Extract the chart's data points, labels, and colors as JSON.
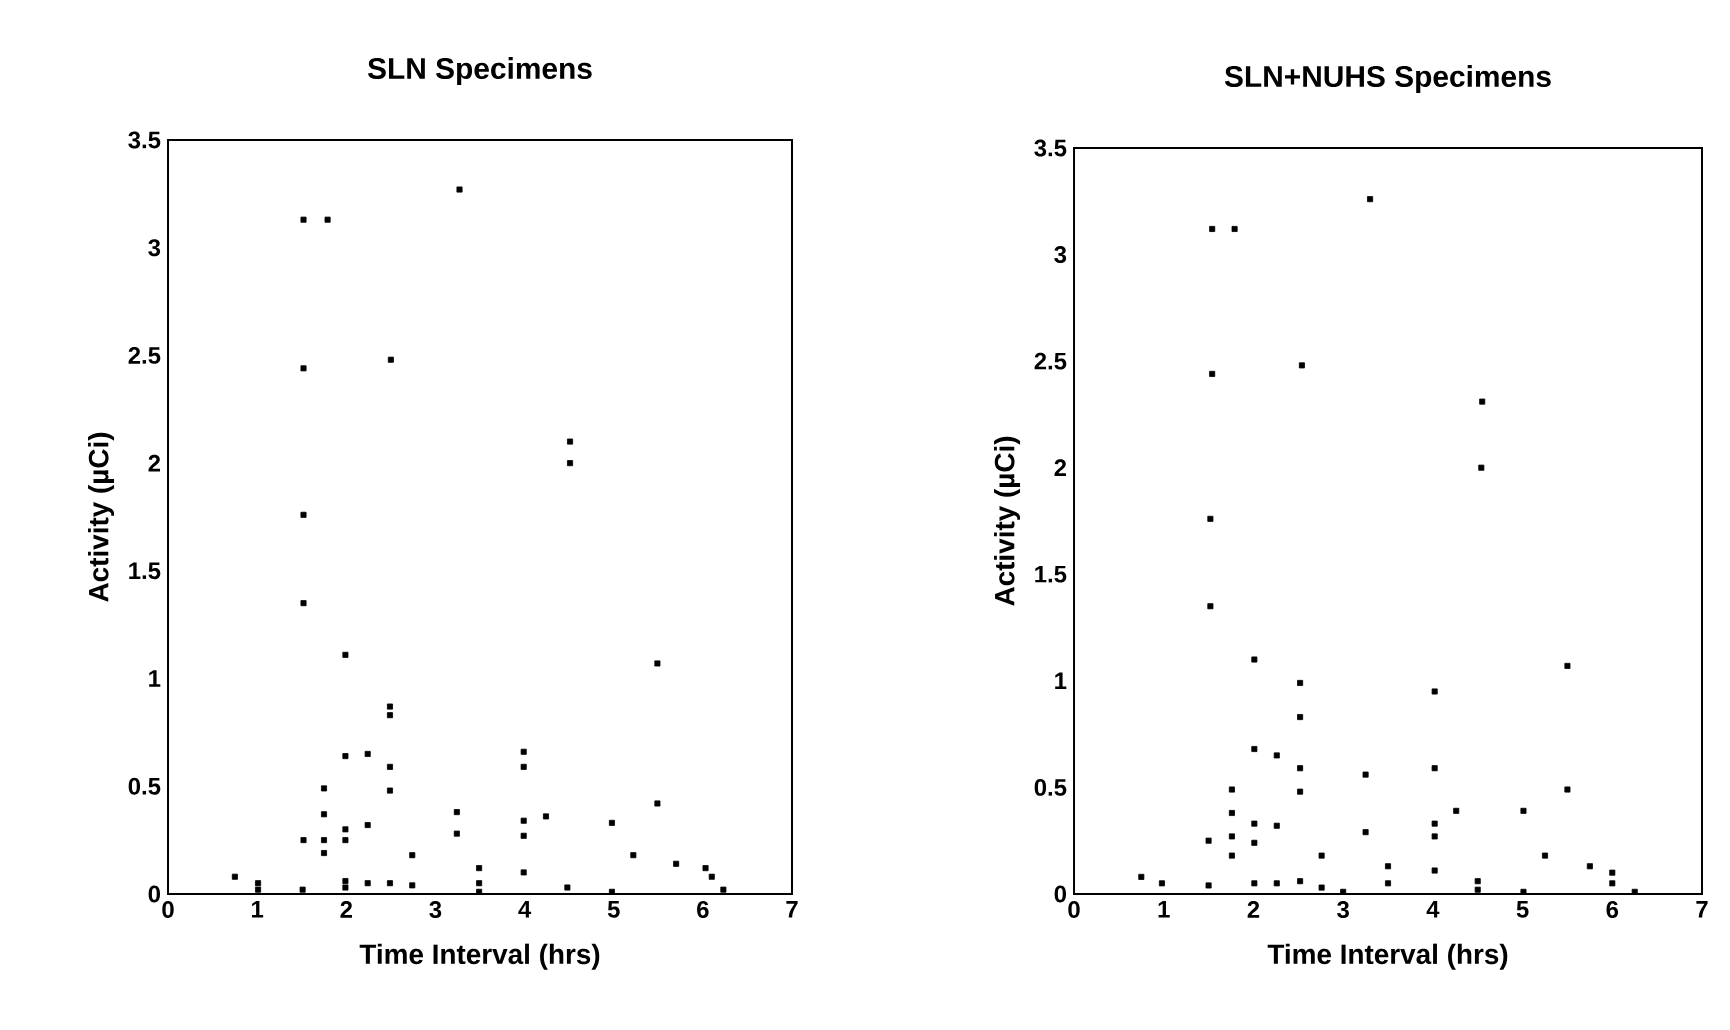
{
  "chart_data": [
    {
      "type": "scatter",
      "title": "SLN Specimens",
      "xlabel": "Time Interval (hrs)",
      "ylabel": "Activity (µCi)",
      "xlim": [
        0,
        7
      ],
      "ylim": [
        0,
        3.5
      ],
      "xticks": [
        0,
        1,
        2,
        3,
        4,
        5,
        6,
        7
      ],
      "yticks": [
        0,
        0.5,
        1,
        1.5,
        2,
        2.5,
        3,
        3.5
      ],
      "grid": false,
      "marker": "square",
      "series": [
        {
          "color": "#000000",
          "x": [
            1.52,
            1.79,
            3.27,
            1.52,
            2.5,
            4.51,
            4.51,
            1.52,
            1.52,
            1.99,
            5.49,
            2.49,
            2.49,
            1.99,
            2.24,
            2.49,
            3.99,
            3.99,
            1.75,
            2.49,
            1.75,
            1.75,
            1.75,
            1.52,
            1.99,
            1.99,
            2.24,
            3.24,
            3.24,
            2.74,
            3.49,
            3.49,
            3.99,
            3.99,
            3.99,
            4.24,
            4.98,
            5.22,
            5.49,
            5.7,
            0.75,
            1.01,
            1.01,
            1.51,
            1.99,
            1.99,
            2.24,
            2.49,
            2.74,
            3.49,
            4.48,
            4.98,
            6.03,
            6.1,
            6.23
          ],
          "values": [
            3.13,
            3.13,
            3.27,
            2.44,
            2.48,
            2.1,
            2.0,
            1.76,
            1.35,
            1.11,
            1.07,
            0.87,
            0.83,
            0.64,
            0.65,
            0.59,
            0.66,
            0.59,
            0.49,
            0.48,
            0.37,
            0.25,
            0.19,
            0.25,
            0.3,
            0.25,
            0.32,
            0.38,
            0.28,
            0.18,
            0.12,
            0.05,
            0.34,
            0.27,
            0.1,
            0.36,
            0.33,
            0.18,
            0.42,
            0.14,
            0.08,
            0.05,
            0.02,
            0.02,
            0.06,
            0.03,
            0.05,
            0.05,
            0.04,
            0.01,
            0.03,
            0.01,
            0.12,
            0.08,
            0.02
          ]
        }
      ]
    },
    {
      "type": "scatter",
      "title": "SLN+NUHS Specimens",
      "xlabel": "Time Interval (hrs)",
      "ylabel": "Activity (µCi)",
      "xlim": [
        0,
        7
      ],
      "ylim": [
        0,
        3.5
      ],
      "xticks": [
        0,
        1,
        2,
        3,
        4,
        5,
        6,
        7
      ],
      "yticks": [
        0,
        0.5,
        1,
        1.5,
        2,
        2.5,
        3,
        3.5
      ],
      "grid": false,
      "marker": "square",
      "series": [
        {
          "color": "#000000",
          "x": [
            1.54,
            1.79,
            3.3,
            1.54,
            2.54,
            4.55,
            4.54,
            1.52,
            1.52,
            2.01,
            2.52,
            4.02,
            2.52,
            2.01,
            2.26,
            2.52,
            4.02,
            3.25,
            1.76,
            2.52,
            1.76,
            1.76,
            1.76,
            1.5,
            2.01,
            2.01,
            2.26,
            3.25,
            4.26,
            4.02,
            4.02,
            4.02,
            5.01,
            5.25,
            2.76,
            3.5,
            3.5,
            0.75,
            0.98,
            1.5,
            2.01,
            2.26,
            2.52,
            2.76,
            3.0,
            4.5,
            4.5,
            5.01,
            5.5,
            5.5,
            5.75,
            6.0,
            6.0,
            6.25
          ],
          "values": [
            3.12,
            3.12,
            3.26,
            2.44,
            2.48,
            2.31,
            2.0,
            1.76,
            1.35,
            1.1,
            0.99,
            0.95,
            0.83,
            0.68,
            0.65,
            0.59,
            0.59,
            0.56,
            0.49,
            0.48,
            0.38,
            0.27,
            0.18,
            0.25,
            0.33,
            0.24,
            0.32,
            0.29,
            0.39,
            0.33,
            0.27,
            0.11,
            0.39,
            0.18,
            0.18,
            0.13,
            0.05,
            0.08,
            0.05,
            0.04,
            0.05,
            0.05,
            0.06,
            0.03,
            0.01,
            0.06,
            0.02,
            0.01,
            1.07,
            0.49,
            0.13,
            0.1,
            0.05,
            0.01
          ]
        }
      ]
    }
  ]
}
